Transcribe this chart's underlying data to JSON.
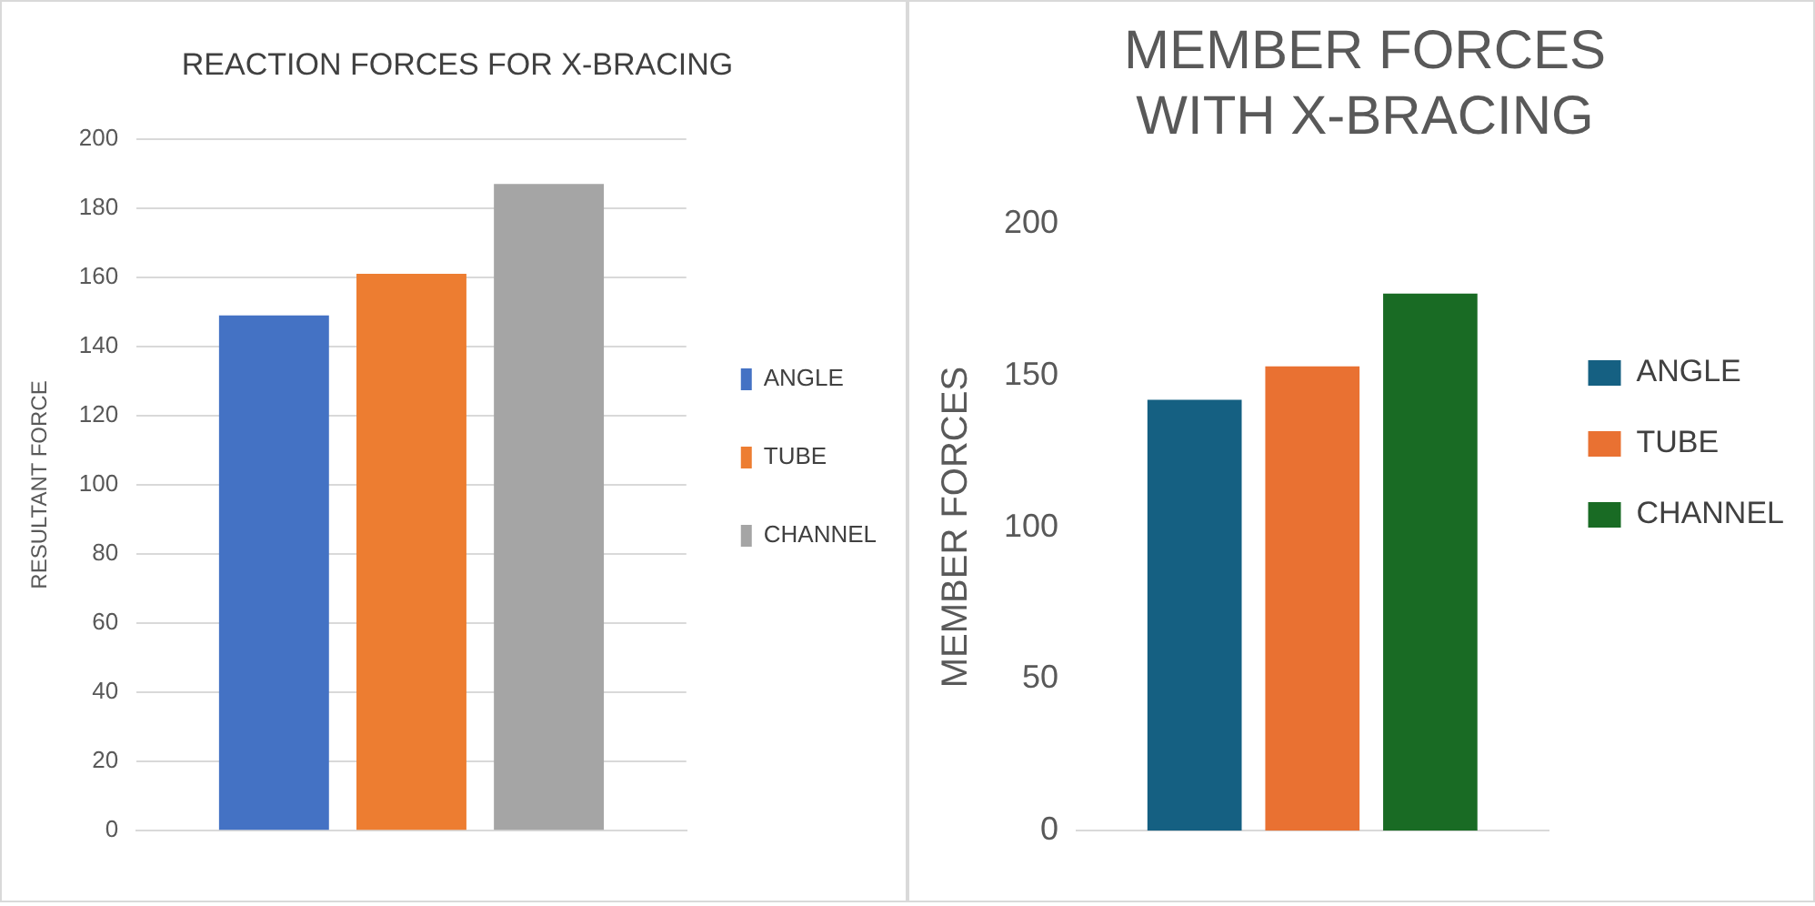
{
  "chart_data": [
    {
      "type": "bar",
      "title": "REACTION FORCES FOR X-BRACING",
      "ylabel": "RESULTANT FORCE",
      "categories": [
        null
      ],
      "series": [
        {
          "name": "ANGLE",
          "color": "#4472c4",
          "values": [
            149
          ]
        },
        {
          "name": "TUBE",
          "color": "#ed7d31",
          "values": [
            161
          ]
        },
        {
          "name": "CHANNEL",
          "color": "#a5a5a5",
          "values": [
            187
          ]
        }
      ],
      "ylim": [
        0,
        200
      ],
      "yticks": [
        0,
        20,
        40,
        60,
        80,
        100,
        120,
        140,
        160,
        180,
        200
      ],
      "grid": "y",
      "legend": "right"
    },
    {
      "type": "bar",
      "title": "MEMBER FORCES WITH X-BRACING",
      "ylabel": "MEMBER FORCES",
      "categories": [
        null
      ],
      "series": [
        {
          "name": "ANGLE",
          "color": "#156082",
          "values": [
            142
          ]
        },
        {
          "name": "TUBE",
          "color": "#e97132",
          "values": [
            153
          ]
        },
        {
          "name": "CHANNEL",
          "color": "#196b24",
          "values": [
            177
          ]
        }
      ],
      "ylim": [
        0,
        200
      ],
      "yticks": [
        0,
        50,
        100,
        150,
        200
      ],
      "legend": "right"
    }
  ]
}
